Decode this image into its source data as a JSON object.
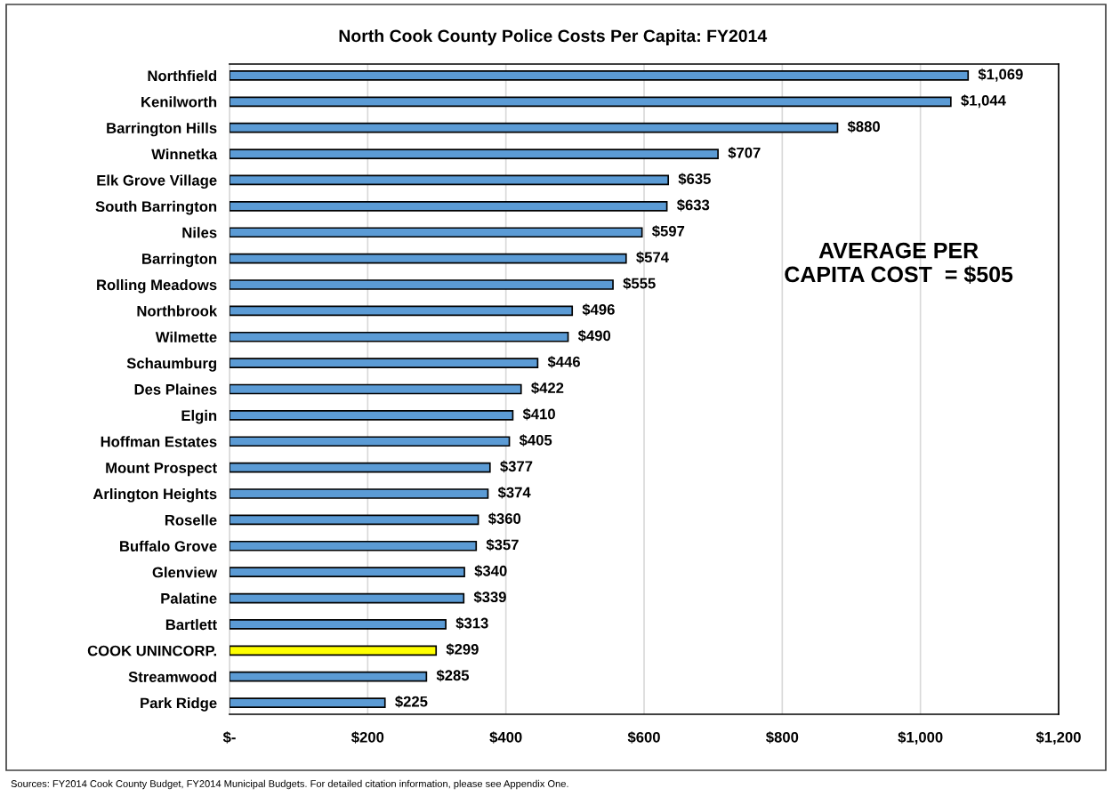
{
  "chart_data": {
    "type": "bar",
    "orientation": "horizontal",
    "title": "North Cook County Police Costs Per Capita: FY2014",
    "categories": [
      "Northfield",
      "Kenilworth",
      "Barrington Hills",
      "Winnetka",
      "Elk Grove Village",
      "South Barrington",
      "Niles",
      "Barrington",
      "Rolling Meadows",
      "Northbrook",
      "Wilmette",
      "Schaumburg",
      "Des Plaines",
      "Elgin",
      "Hoffman Estates",
      "Mount Prospect",
      "Arlington Heights",
      "Roselle",
      "Buffalo Grove",
      "Glenview",
      "Palatine",
      "Bartlett",
      "COOK UNINCORP.",
      "Streamwood",
      "Park Ridge"
    ],
    "values": [
      1069,
      1044,
      880,
      707,
      635,
      633,
      597,
      574,
      555,
      496,
      490,
      446,
      422,
      410,
      405,
      377,
      374,
      360,
      357,
      340,
      339,
      313,
      299,
      285,
      225
    ],
    "value_labels": [
      "$1,069",
      "$1,044",
      "$880",
      "$707",
      "$635",
      "$633",
      "$597",
      "$574",
      "$555",
      "$496",
      "$490",
      "$446",
      "$422",
      "$410",
      "$405",
      "$377",
      "$374",
      "$360",
      "$357",
      "$340",
      "$339",
      "$313",
      "$299",
      "$285",
      "$225"
    ],
    "colors": [
      "#5b9bd5",
      "#5b9bd5",
      "#5b9bd5",
      "#5b9bd5",
      "#5b9bd5",
      "#5b9bd5",
      "#5b9bd5",
      "#5b9bd5",
      "#5b9bd5",
      "#5b9bd5",
      "#5b9bd5",
      "#5b9bd5",
      "#5b9bd5",
      "#5b9bd5",
      "#5b9bd5",
      "#5b9bd5",
      "#5b9bd5",
      "#5b9bd5",
      "#5b9bd5",
      "#5b9bd5",
      "#5b9bd5",
      "#5b9bd5",
      "#ffff00",
      "#5b9bd5",
      "#5b9bd5"
    ],
    "xlim": [
      0,
      1200
    ],
    "xticks": [
      {
        "value": 0,
        "label": "$-"
      },
      {
        "value": 200,
        "label": "$200"
      },
      {
        "value": 400,
        "label": "$400"
      },
      {
        "value": 600,
        "label": "$600"
      },
      {
        "value": 800,
        "label": "$800"
      },
      {
        "value": 1000,
        "label": "$1,000"
      },
      {
        "value": 1200,
        "label": "$1,200"
      }
    ],
    "grid": "x",
    "annotations": [
      "AVERAGE PER\nCAPITA COST  = $505",
      "Sources: FY2014 Cook County Budget, FY2014 Municipal Budgets. For detailed citation information, please see Appendix One."
    ]
  }
}
